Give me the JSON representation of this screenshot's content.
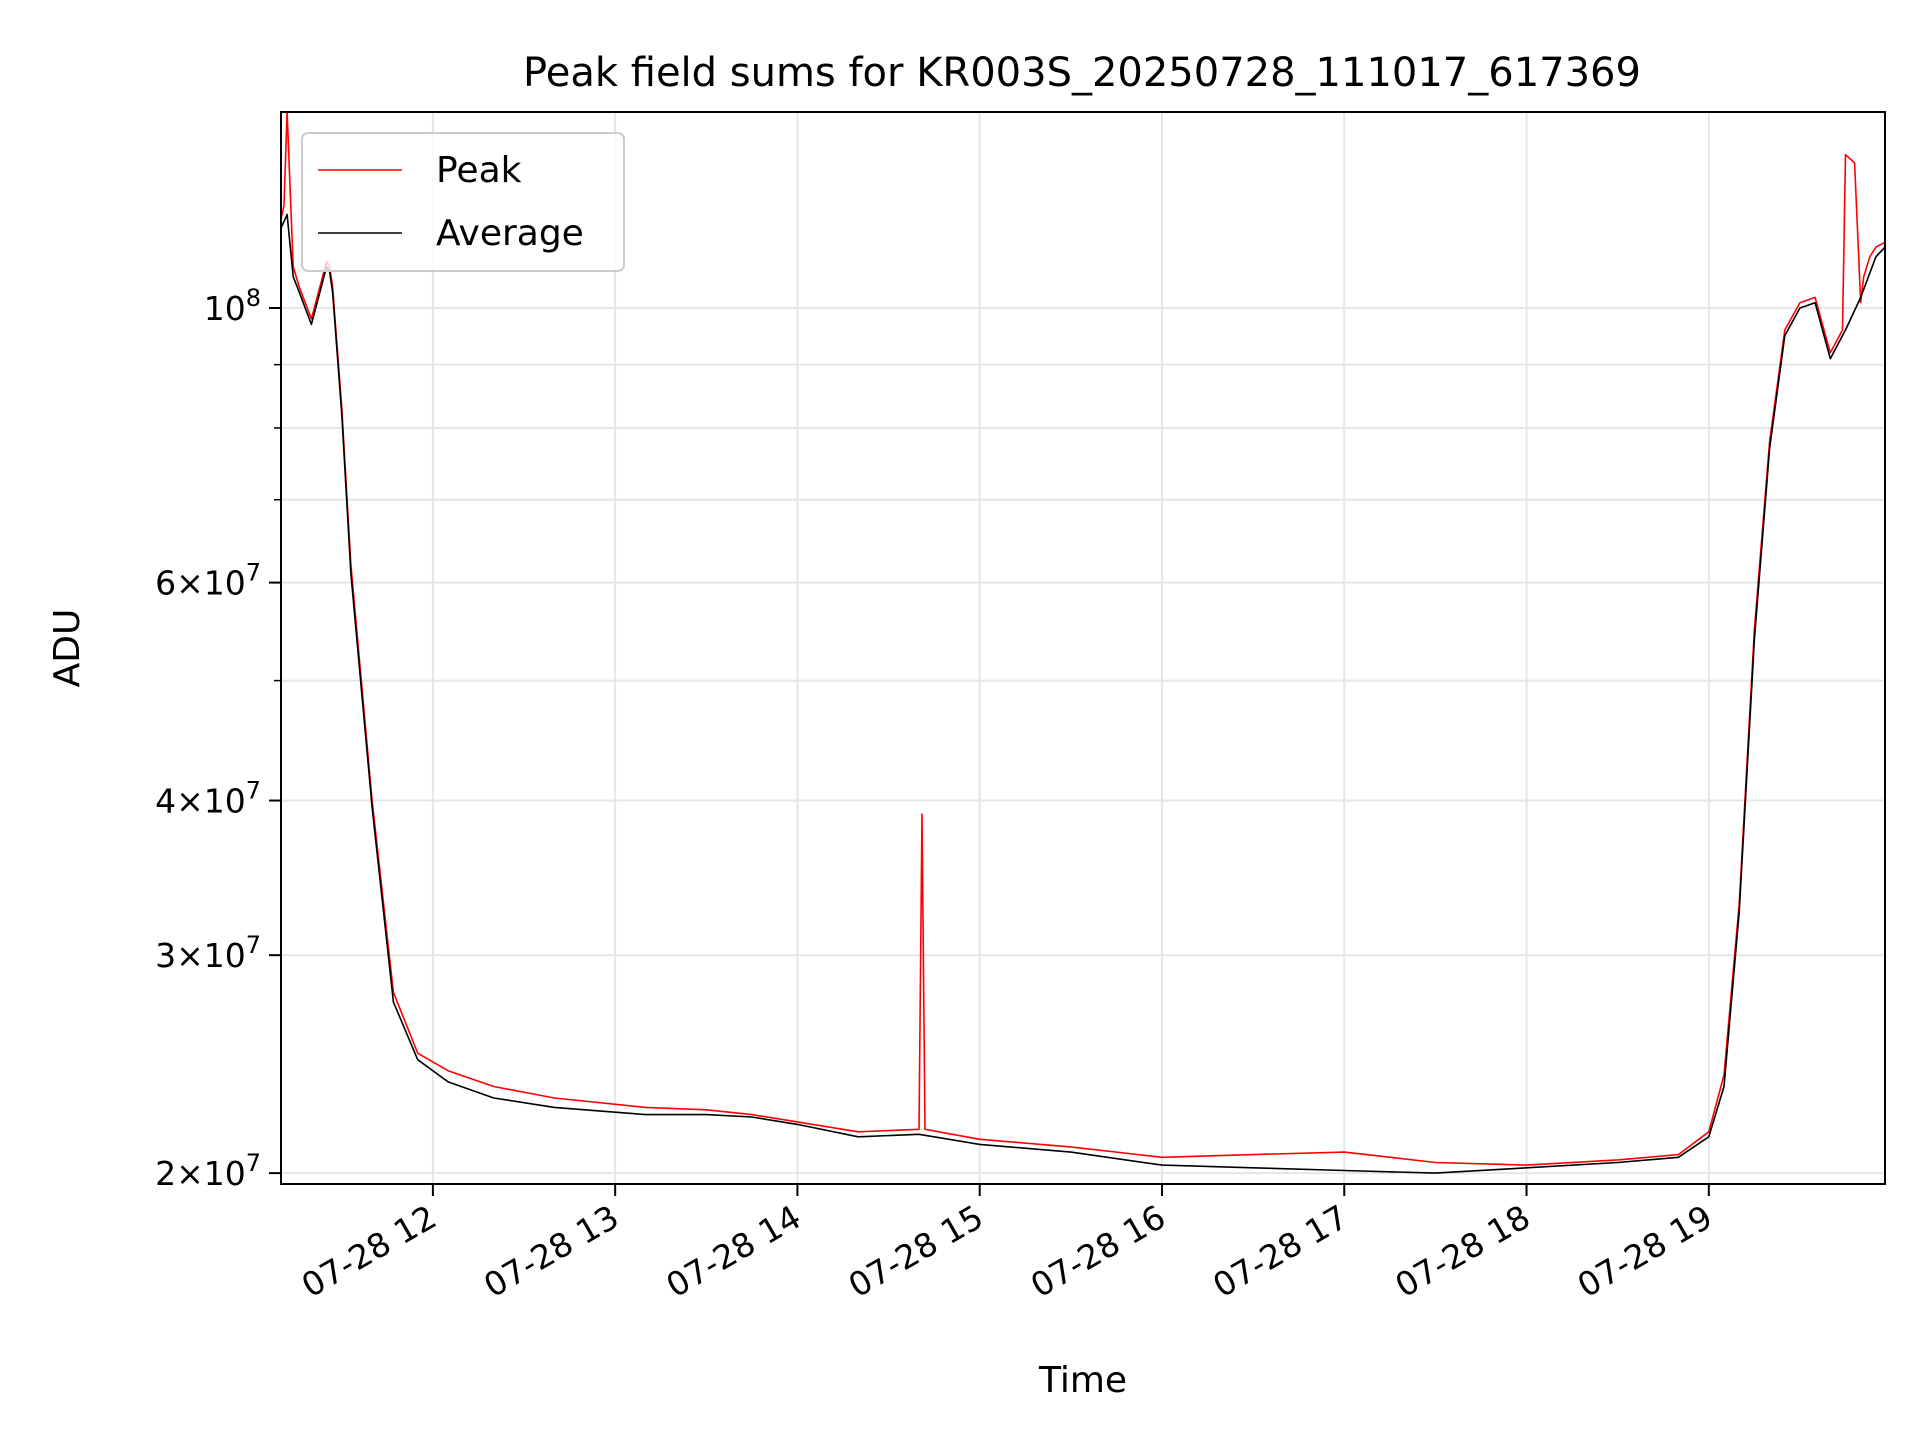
{
  "chart_data": {
    "type": "line",
    "title": "Peak field sums for KR003S_20250728_111017_617369",
    "xlabel": "Time",
    "ylabel": "ADU",
    "y_scale": "log",
    "ylim": [
      19600000,
      144000000
    ],
    "xlim": [
      "2025-07-28 11:10",
      "2025-07-28 19:58"
    ],
    "grid": true,
    "legend_position": "top-left",
    "x_tick_labels": [
      "07-28 12",
      "07-28 13",
      "07-28 14",
      "07-28 15",
      "07-28 16",
      "07-28 17",
      "07-28 18",
      "07-28 19"
    ],
    "x_tick_values": [
      "2025-07-28 12:00",
      "2025-07-28 13:00",
      "2025-07-28 14:00",
      "2025-07-28 15:00",
      "2025-07-28 16:00",
      "2025-07-28 17:00",
      "2025-07-28 18:00",
      "2025-07-28 19:00"
    ],
    "y_tick_labels": [
      {
        "value": 20000000,
        "mantissa": "2",
        "exponent": "7"
      },
      {
        "value": 30000000,
        "mantissa": "3",
        "exponent": "7"
      },
      {
        "value": 40000000,
        "mantissa": "4",
        "exponent": "7"
      },
      {
        "value": 60000000,
        "mantissa": "6",
        "exponent": "7"
      },
      {
        "value": 100000000,
        "mantissa": "",
        "exponent": "8"
      }
    ],
    "y_minor_values": [
      50000000,
      70000000,
      80000000,
      90000000
    ],
    "series": [
      {
        "name": "Peak",
        "color": "#ff0000",
        "x": [
          "2025-07-28 11:10",
          "2025-07-28 11:11",
          "2025-07-28 11:12",
          "2025-07-28 11:14",
          "2025-07-28 11:16",
          "2025-07-28 11:20",
          "2025-07-28 11:25",
          "2025-07-28 11:26",
          "2025-07-28 11:27",
          "2025-07-28 11:30",
          "2025-07-28 11:33",
          "2025-07-28 11:40",
          "2025-07-28 11:47",
          "2025-07-28 11:55",
          "2025-07-28 12:05",
          "2025-07-28 12:20",
          "2025-07-28 12:40",
          "2025-07-28 13:10",
          "2025-07-28 13:30",
          "2025-07-28 13:45",
          "2025-07-28 14:00",
          "2025-07-28 14:20",
          "2025-07-28 14:40",
          "2025-07-28 14:41",
          "2025-07-28 14:42",
          "2025-07-28 15:00",
          "2025-07-28 15:30",
          "2025-07-28 16:00",
          "2025-07-28 16:30",
          "2025-07-28 17:00",
          "2025-07-28 17:30",
          "2025-07-28 18:00",
          "2025-07-28 18:30",
          "2025-07-28 18:50",
          "2025-07-28 19:00",
          "2025-07-28 19:05",
          "2025-07-28 19:10",
          "2025-07-28 19:15",
          "2025-07-28 19:20",
          "2025-07-28 19:25",
          "2025-07-28 19:30",
          "2025-07-28 19:35",
          "2025-07-28 19:40",
          "2025-07-28 19:44",
          "2025-07-28 19:45",
          "2025-07-28 19:48",
          "2025-07-28 19:50",
          "2025-07-28 19:51",
          "2025-07-28 19:52",
          "2025-07-28 19:53",
          "2025-07-28 19:55",
          "2025-07-28 19:58"
        ],
        "y": [
          118000000,
          121000000,
          144000000,
          108000000,
          104000000,
          98000000,
          109000000,
          108000000,
          104000000,
          83000000,
          62000000,
          40000000,
          28000000,
          25000000,
          24200000,
          23500000,
          23000000,
          22600000,
          22500000,
          22300000,
          22000000,
          21600000,
          21700000,
          39000000,
          21700000,
          21300000,
          21000000,
          20600000,
          20700000,
          20800000,
          20400000,
          20300000,
          20500000,
          20700000,
          21600000,
          24000000,
          33000000,
          55000000,
          78000000,
          96000000,
          101000000,
          102000000,
          92000000,
          96000000,
          133000000,
          131000000,
          101000000,
          106000000,
          108000000,
          110000000,
          112000000,
          113000000
        ]
      },
      {
        "name": "Average",
        "color": "#000000",
        "x": [
          "2025-07-28 11:10",
          "2025-07-28 11:12",
          "2025-07-28 11:14",
          "2025-07-28 11:16",
          "2025-07-28 11:20",
          "2025-07-28 11:25",
          "2025-07-28 11:26",
          "2025-07-28 11:27",
          "2025-07-28 11:30",
          "2025-07-28 11:33",
          "2025-07-28 11:40",
          "2025-07-28 11:47",
          "2025-07-28 11:55",
          "2025-07-28 12:05",
          "2025-07-28 12:20",
          "2025-07-28 12:40",
          "2025-07-28 13:10",
          "2025-07-28 13:30",
          "2025-07-28 13:45",
          "2025-07-28 14:00",
          "2025-07-28 14:20",
          "2025-07-28 14:40",
          "2025-07-28 15:00",
          "2025-07-28 15:30",
          "2025-07-28 16:00",
          "2025-07-28 16:30",
          "2025-07-28 17:00",
          "2025-07-28 17:30",
          "2025-07-28 18:00",
          "2025-07-28 18:30",
          "2025-07-28 18:50",
          "2025-07-28 19:00",
          "2025-07-28 19:05",
          "2025-07-28 19:10",
          "2025-07-28 19:15",
          "2025-07-28 19:20",
          "2025-07-28 19:25",
          "2025-07-28 19:30",
          "2025-07-28 19:35",
          "2025-07-28 19:40",
          "2025-07-28 19:44",
          "2025-07-28 19:45",
          "2025-07-28 19:50",
          "2025-07-28 19:55",
          "2025-07-28 19:58"
        ],
        "y": [
          116000000,
          119000000,
          106000000,
          103000000,
          97000000,
          108000000,
          107000000,
          103000000,
          82000000,
          61000000,
          39500000,
          27500000,
          24700000,
          23700000,
          23000000,
          22600000,
          22300000,
          22300000,
          22200000,
          21900000,
          21400000,
          21500000,
          21100000,
          20800000,
          20300000,
          20200000,
          20100000,
          20000000,
          20200000,
          20400000,
          20600000,
          21400000,
          23500000,
          32500000,
          54000000,
          77000000,
          95000000,
          100000000,
          101000000,
          91000000,
          95000000,
          96000000,
          102000000,
          110000000,
          112000000
        ]
      }
    ]
  }
}
